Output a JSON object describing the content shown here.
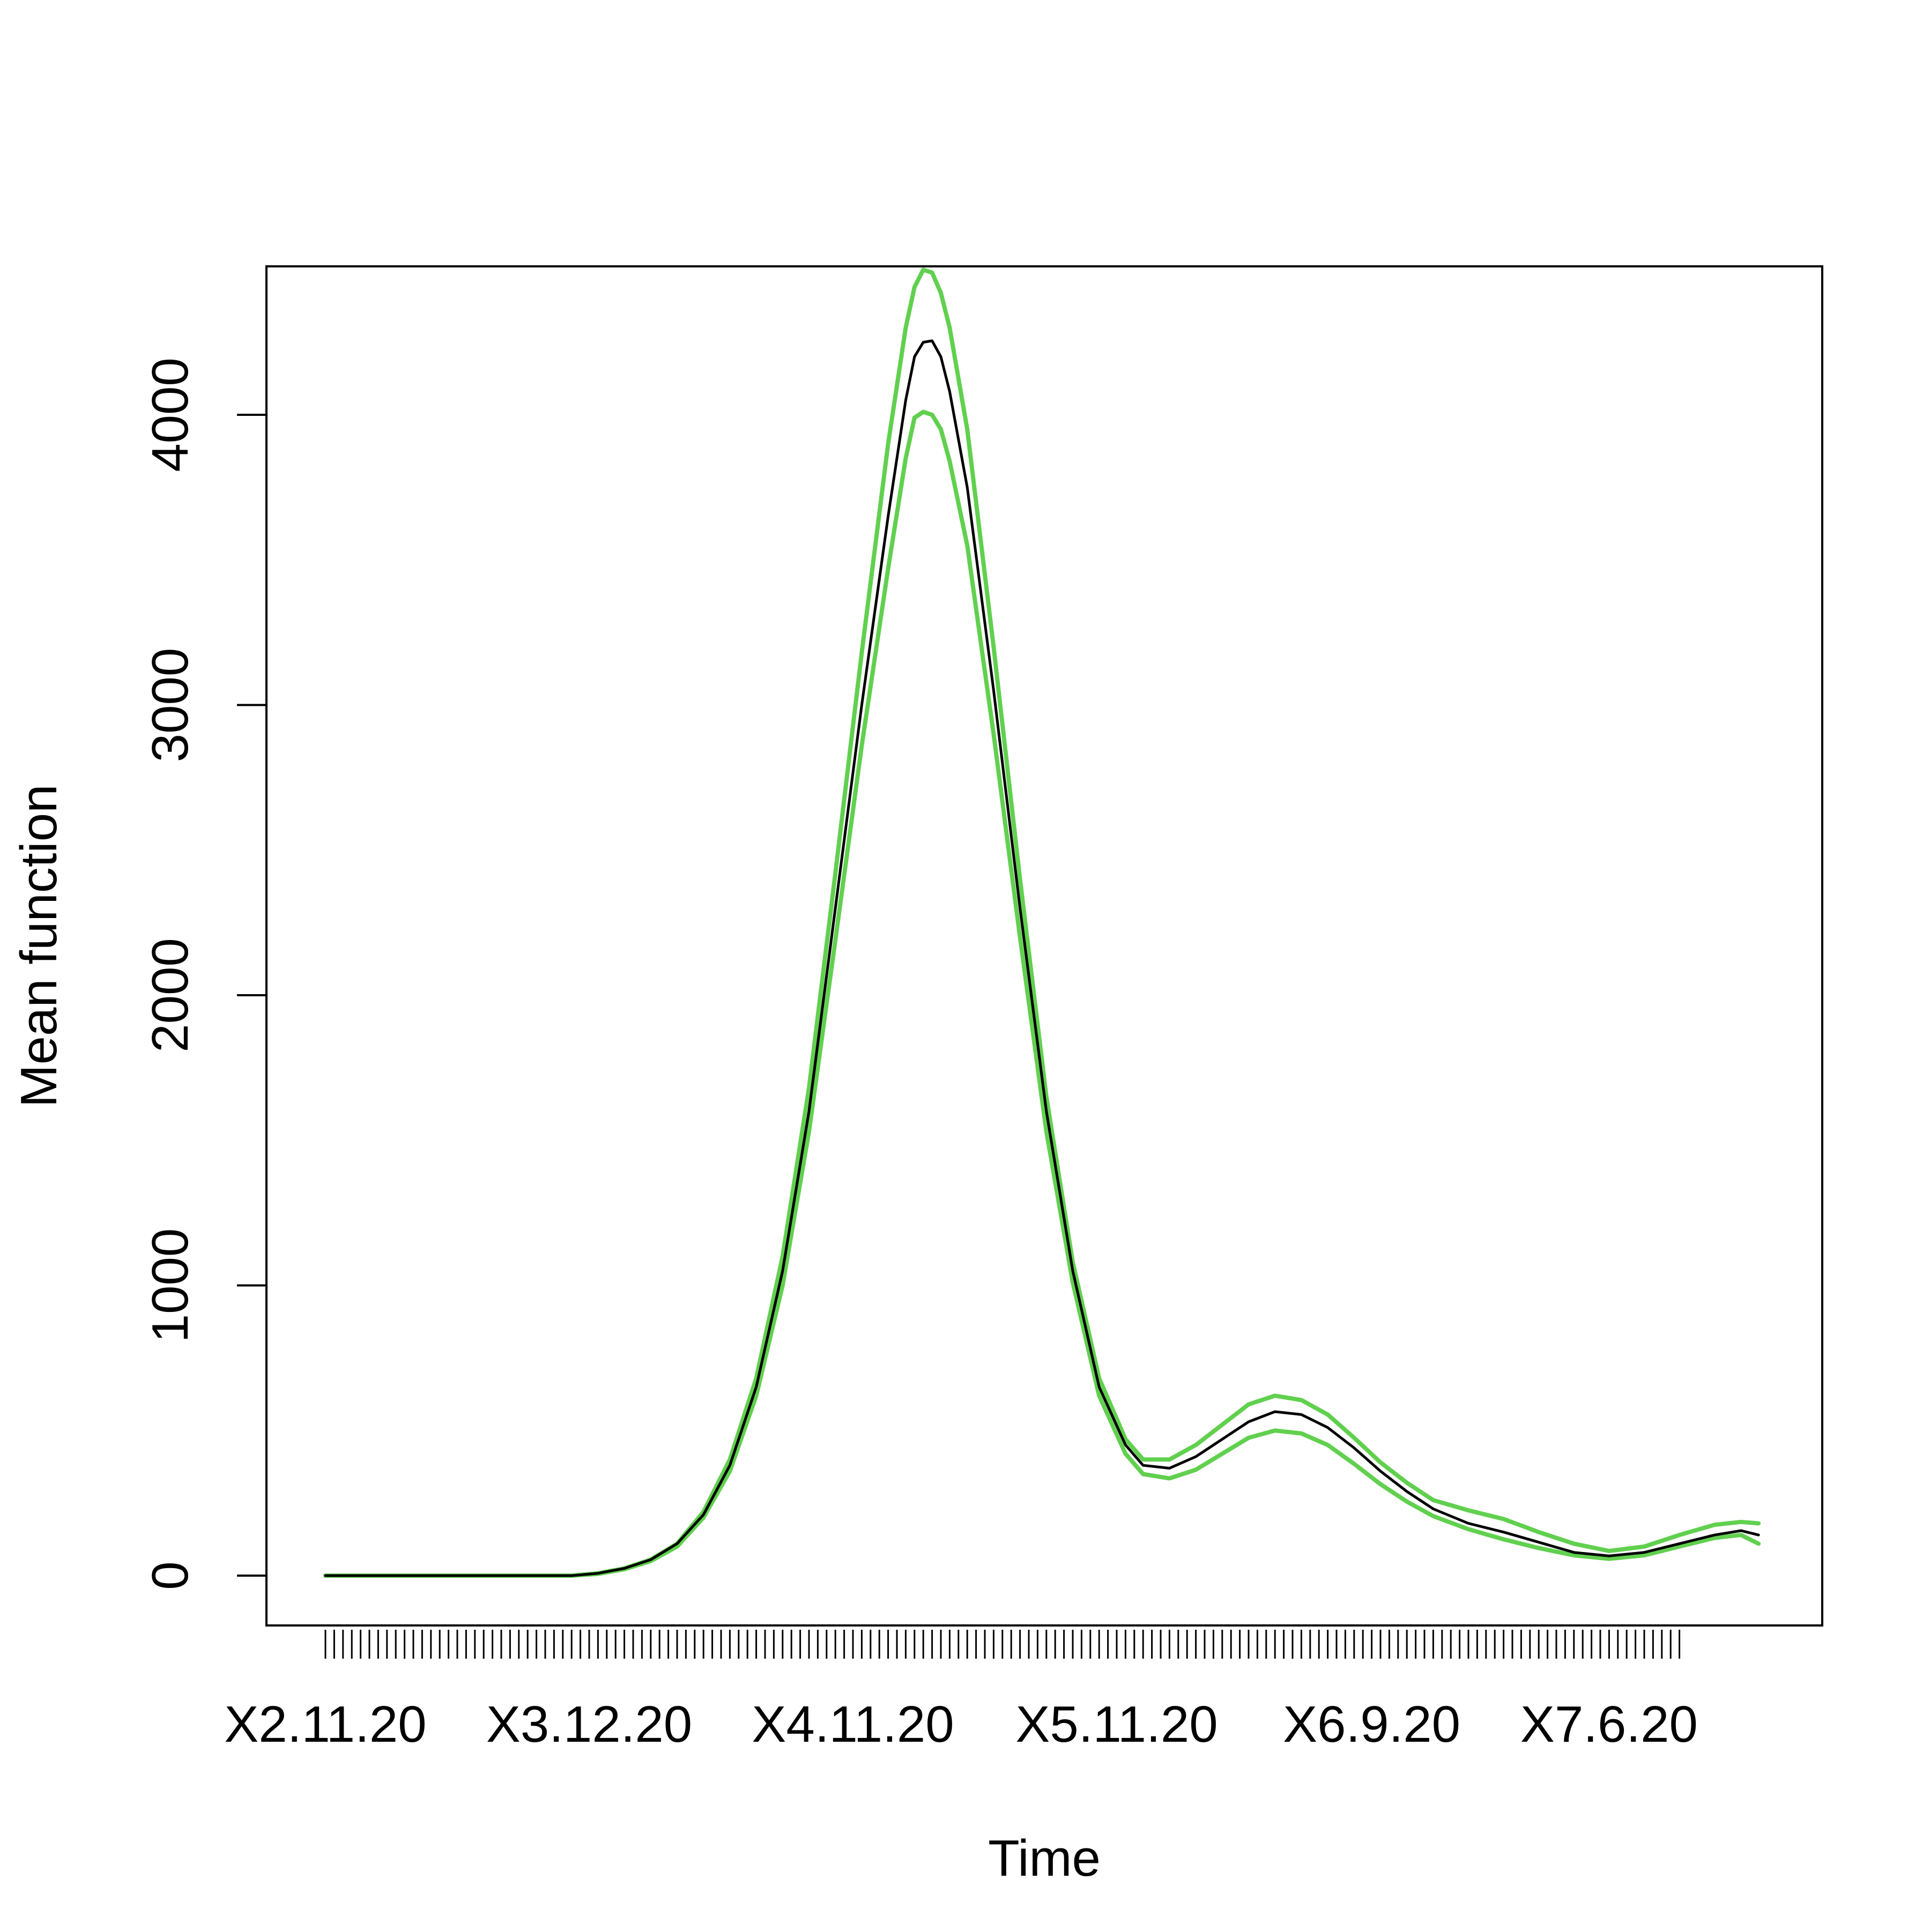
{
  "chart_data": {
    "type": "line",
    "title": "",
    "xlabel": "Time",
    "ylabel": "Mean function",
    "x_tick_labels": [
      {
        "label": "X2.11.20",
        "index": 0
      },
      {
        "label": "X3.12.20",
        "index": 30
      },
      {
        "label": "X4.11.20",
        "index": 60
      },
      {
        "label": "X5.11.20",
        "index": 90
      },
      {
        "label": "X6.9.20",
        "index": 119
      },
      {
        "label": "X7.6.20",
        "index": 146
      }
    ],
    "x_index_range": [
      0,
      163
    ],
    "n_tick_marks": 155,
    "y_ticks": [
      0,
      1000,
      2000,
      3000,
      4000
    ],
    "ylim": [
      -180,
      4500
    ],
    "grid": false,
    "legend": "none",
    "colors": {
      "mean": "#000000",
      "band": "#61D04F"
    },
    "series": [
      {
        "role": "mean",
        "color": "#000000",
        "points": [
          [
            0,
            0
          ],
          [
            20,
            0
          ],
          [
            28,
            0
          ],
          [
            31,
            8
          ],
          [
            34,
            25
          ],
          [
            37,
            55
          ],
          [
            40,
            110
          ],
          [
            43,
            210
          ],
          [
            46,
            380
          ],
          [
            49,
            650
          ],
          [
            52,
            1050
          ],
          [
            55,
            1600
          ],
          [
            58,
            2300
          ],
          [
            61,
            3000
          ],
          [
            64,
            3650
          ],
          [
            66,
            4050
          ],
          [
            67,
            4200
          ],
          [
            68,
            4250
          ],
          [
            69,
            4255
          ],
          [
            70,
            4200
          ],
          [
            71,
            4080
          ],
          [
            73,
            3750
          ],
          [
            76,
            3050
          ],
          [
            79,
            2300
          ],
          [
            82,
            1600
          ],
          [
            85,
            1050
          ],
          [
            88,
            650
          ],
          [
            91,
            450
          ],
          [
            93,
            380
          ],
          [
            96,
            370
          ],
          [
            99,
            410
          ],
          [
            102,
            470
          ],
          [
            105,
            530
          ],
          [
            108,
            565
          ],
          [
            111,
            555
          ],
          [
            114,
            510
          ],
          [
            117,
            440
          ],
          [
            120,
            360
          ],
          [
            123,
            290
          ],
          [
            126,
            230
          ],
          [
            130,
            180
          ],
          [
            134,
            150
          ],
          [
            138,
            115
          ],
          [
            142,
            80
          ],
          [
            146,
            68
          ],
          [
            150,
            80
          ],
          [
            154,
            110
          ],
          [
            158,
            140
          ],
          [
            161,
            155
          ],
          [
            163,
            140
          ]
        ]
      },
      {
        "role": "upper-band",
        "color": "#61D04F",
        "points": [
          [
            0,
            0
          ],
          [
            20,
            0
          ],
          [
            28,
            0
          ],
          [
            31,
            8
          ],
          [
            34,
            25
          ],
          [
            37,
            55
          ],
          [
            40,
            110
          ],
          [
            43,
            220
          ],
          [
            46,
            400
          ],
          [
            49,
            680
          ],
          [
            52,
            1100
          ],
          [
            55,
            1680
          ],
          [
            58,
            2420
          ],
          [
            61,
            3180
          ],
          [
            64,
            3900
          ],
          [
            66,
            4300
          ],
          [
            67,
            4440
          ],
          [
            68,
            4500
          ],
          [
            69,
            4490
          ],
          [
            70,
            4420
          ],
          [
            71,
            4300
          ],
          [
            73,
            3950
          ],
          [
            76,
            3200
          ],
          [
            79,
            2400
          ],
          [
            82,
            1650
          ],
          [
            85,
            1080
          ],
          [
            88,
            680
          ],
          [
            91,
            470
          ],
          [
            93,
            400
          ],
          [
            96,
            400
          ],
          [
            99,
            450
          ],
          [
            102,
            520
          ],
          [
            105,
            590
          ],
          [
            108,
            620
          ],
          [
            111,
            605
          ],
          [
            114,
            555
          ],
          [
            117,
            475
          ],
          [
            120,
            390
          ],
          [
            123,
            320
          ],
          [
            126,
            260
          ],
          [
            130,
            225
          ],
          [
            134,
            195
          ],
          [
            138,
            150
          ],
          [
            142,
            110
          ],
          [
            146,
            85
          ],
          [
            150,
            100
          ],
          [
            154,
            140
          ],
          [
            158,
            175
          ],
          [
            161,
            185
          ],
          [
            163,
            180
          ]
        ]
      },
      {
        "role": "lower-band",
        "color": "#61D04F",
        "points": [
          [
            0,
            0
          ],
          [
            20,
            0
          ],
          [
            28,
            0
          ],
          [
            31,
            6
          ],
          [
            34,
            22
          ],
          [
            37,
            50
          ],
          [
            40,
            100
          ],
          [
            43,
            200
          ],
          [
            46,
            360
          ],
          [
            49,
            620
          ],
          [
            52,
            1000
          ],
          [
            55,
            1530
          ],
          [
            58,
            2190
          ],
          [
            61,
            2860
          ],
          [
            64,
            3470
          ],
          [
            66,
            3850
          ],
          [
            67,
            3990
          ],
          [
            68,
            4010
          ],
          [
            69,
            4000
          ],
          [
            70,
            3950
          ],
          [
            71,
            3840
          ],
          [
            73,
            3550
          ],
          [
            76,
            2900
          ],
          [
            79,
            2200
          ],
          [
            82,
            1530
          ],
          [
            85,
            1010
          ],
          [
            88,
            620
          ],
          [
            91,
            420
          ],
          [
            93,
            350
          ],
          [
            96,
            335
          ],
          [
            99,
            365
          ],
          [
            102,
            420
          ],
          [
            105,
            475
          ],
          [
            108,
            500
          ],
          [
            111,
            490
          ],
          [
            114,
            450
          ],
          [
            117,
            385
          ],
          [
            120,
            315
          ],
          [
            123,
            255
          ],
          [
            126,
            205
          ],
          [
            130,
            160
          ],
          [
            134,
            125
          ],
          [
            138,
            95
          ],
          [
            142,
            70
          ],
          [
            146,
            58
          ],
          [
            150,
            70
          ],
          [
            154,
            100
          ],
          [
            158,
            130
          ],
          [
            161,
            140
          ],
          [
            163,
            110
          ]
        ]
      }
    ]
  }
}
